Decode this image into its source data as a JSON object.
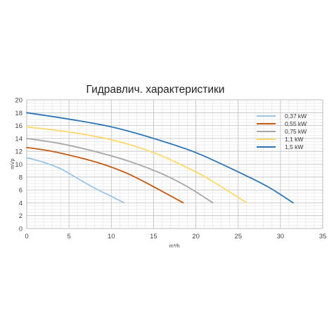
{
  "chart_data": {
    "type": "line",
    "title": "Гидравлич. характеристики",
    "xlabel": "m³/h",
    "ylabel": "mVp",
    "xlim": [
      0,
      35
    ],
    "ylim": [
      0,
      20
    ],
    "xticks": [
      "0",
      "5",
      "10",
      "15",
      "20",
      "25",
      "30",
      "35"
    ],
    "yticks": [
      "0",
      "2",
      "4",
      "6",
      "8",
      "10",
      "12",
      "14",
      "16",
      "18",
      "20"
    ],
    "grid": true,
    "legend_position": "top-right",
    "series": [
      {
        "name": "0,37 kW",
        "color": "#9dc3e6",
        "points": [
          [
            0,
            11
          ],
          [
            2,
            10.3
          ],
          [
            4,
            9.3
          ],
          [
            6,
            7.8
          ],
          [
            8,
            6.3
          ],
          [
            10,
            5
          ],
          [
            11.5,
            4
          ]
        ]
      },
      {
        "name": "0,55 kW",
        "color": "#c55a11",
        "points": [
          [
            0,
            12.6
          ],
          [
            3,
            12
          ],
          [
            6,
            11.1
          ],
          [
            9,
            10
          ],
          [
            12,
            8.5
          ],
          [
            15,
            6.5
          ],
          [
            18.5,
            4
          ]
        ]
      },
      {
        "name": "0,75 kW",
        "color": "#a5a5a5",
        "points": [
          [
            0,
            14
          ],
          [
            4,
            13.2
          ],
          [
            8,
            12
          ],
          [
            12,
            10.5
          ],
          [
            16,
            8.5
          ],
          [
            19,
            6.5
          ],
          [
            22,
            4
          ]
        ]
      },
      {
        "name": "1,1 kW",
        "color": "#ffd966",
        "points": [
          [
            0,
            15.8
          ],
          [
            5,
            15
          ],
          [
            10,
            13.8
          ],
          [
            15,
            11.8
          ],
          [
            20,
            8.8
          ],
          [
            23,
            6.5
          ],
          [
            26,
            4
          ]
        ]
      },
      {
        "name": "1,5 kW",
        "color": "#2e75b6",
        "points": [
          [
            0,
            18
          ],
          [
            5,
            17
          ],
          [
            10,
            15.8
          ],
          [
            15,
            14
          ],
          [
            20,
            11.8
          ],
          [
            25,
            8.8
          ],
          [
            28.5,
            6.5
          ],
          [
            31.5,
            4
          ]
        ]
      }
    ]
  }
}
